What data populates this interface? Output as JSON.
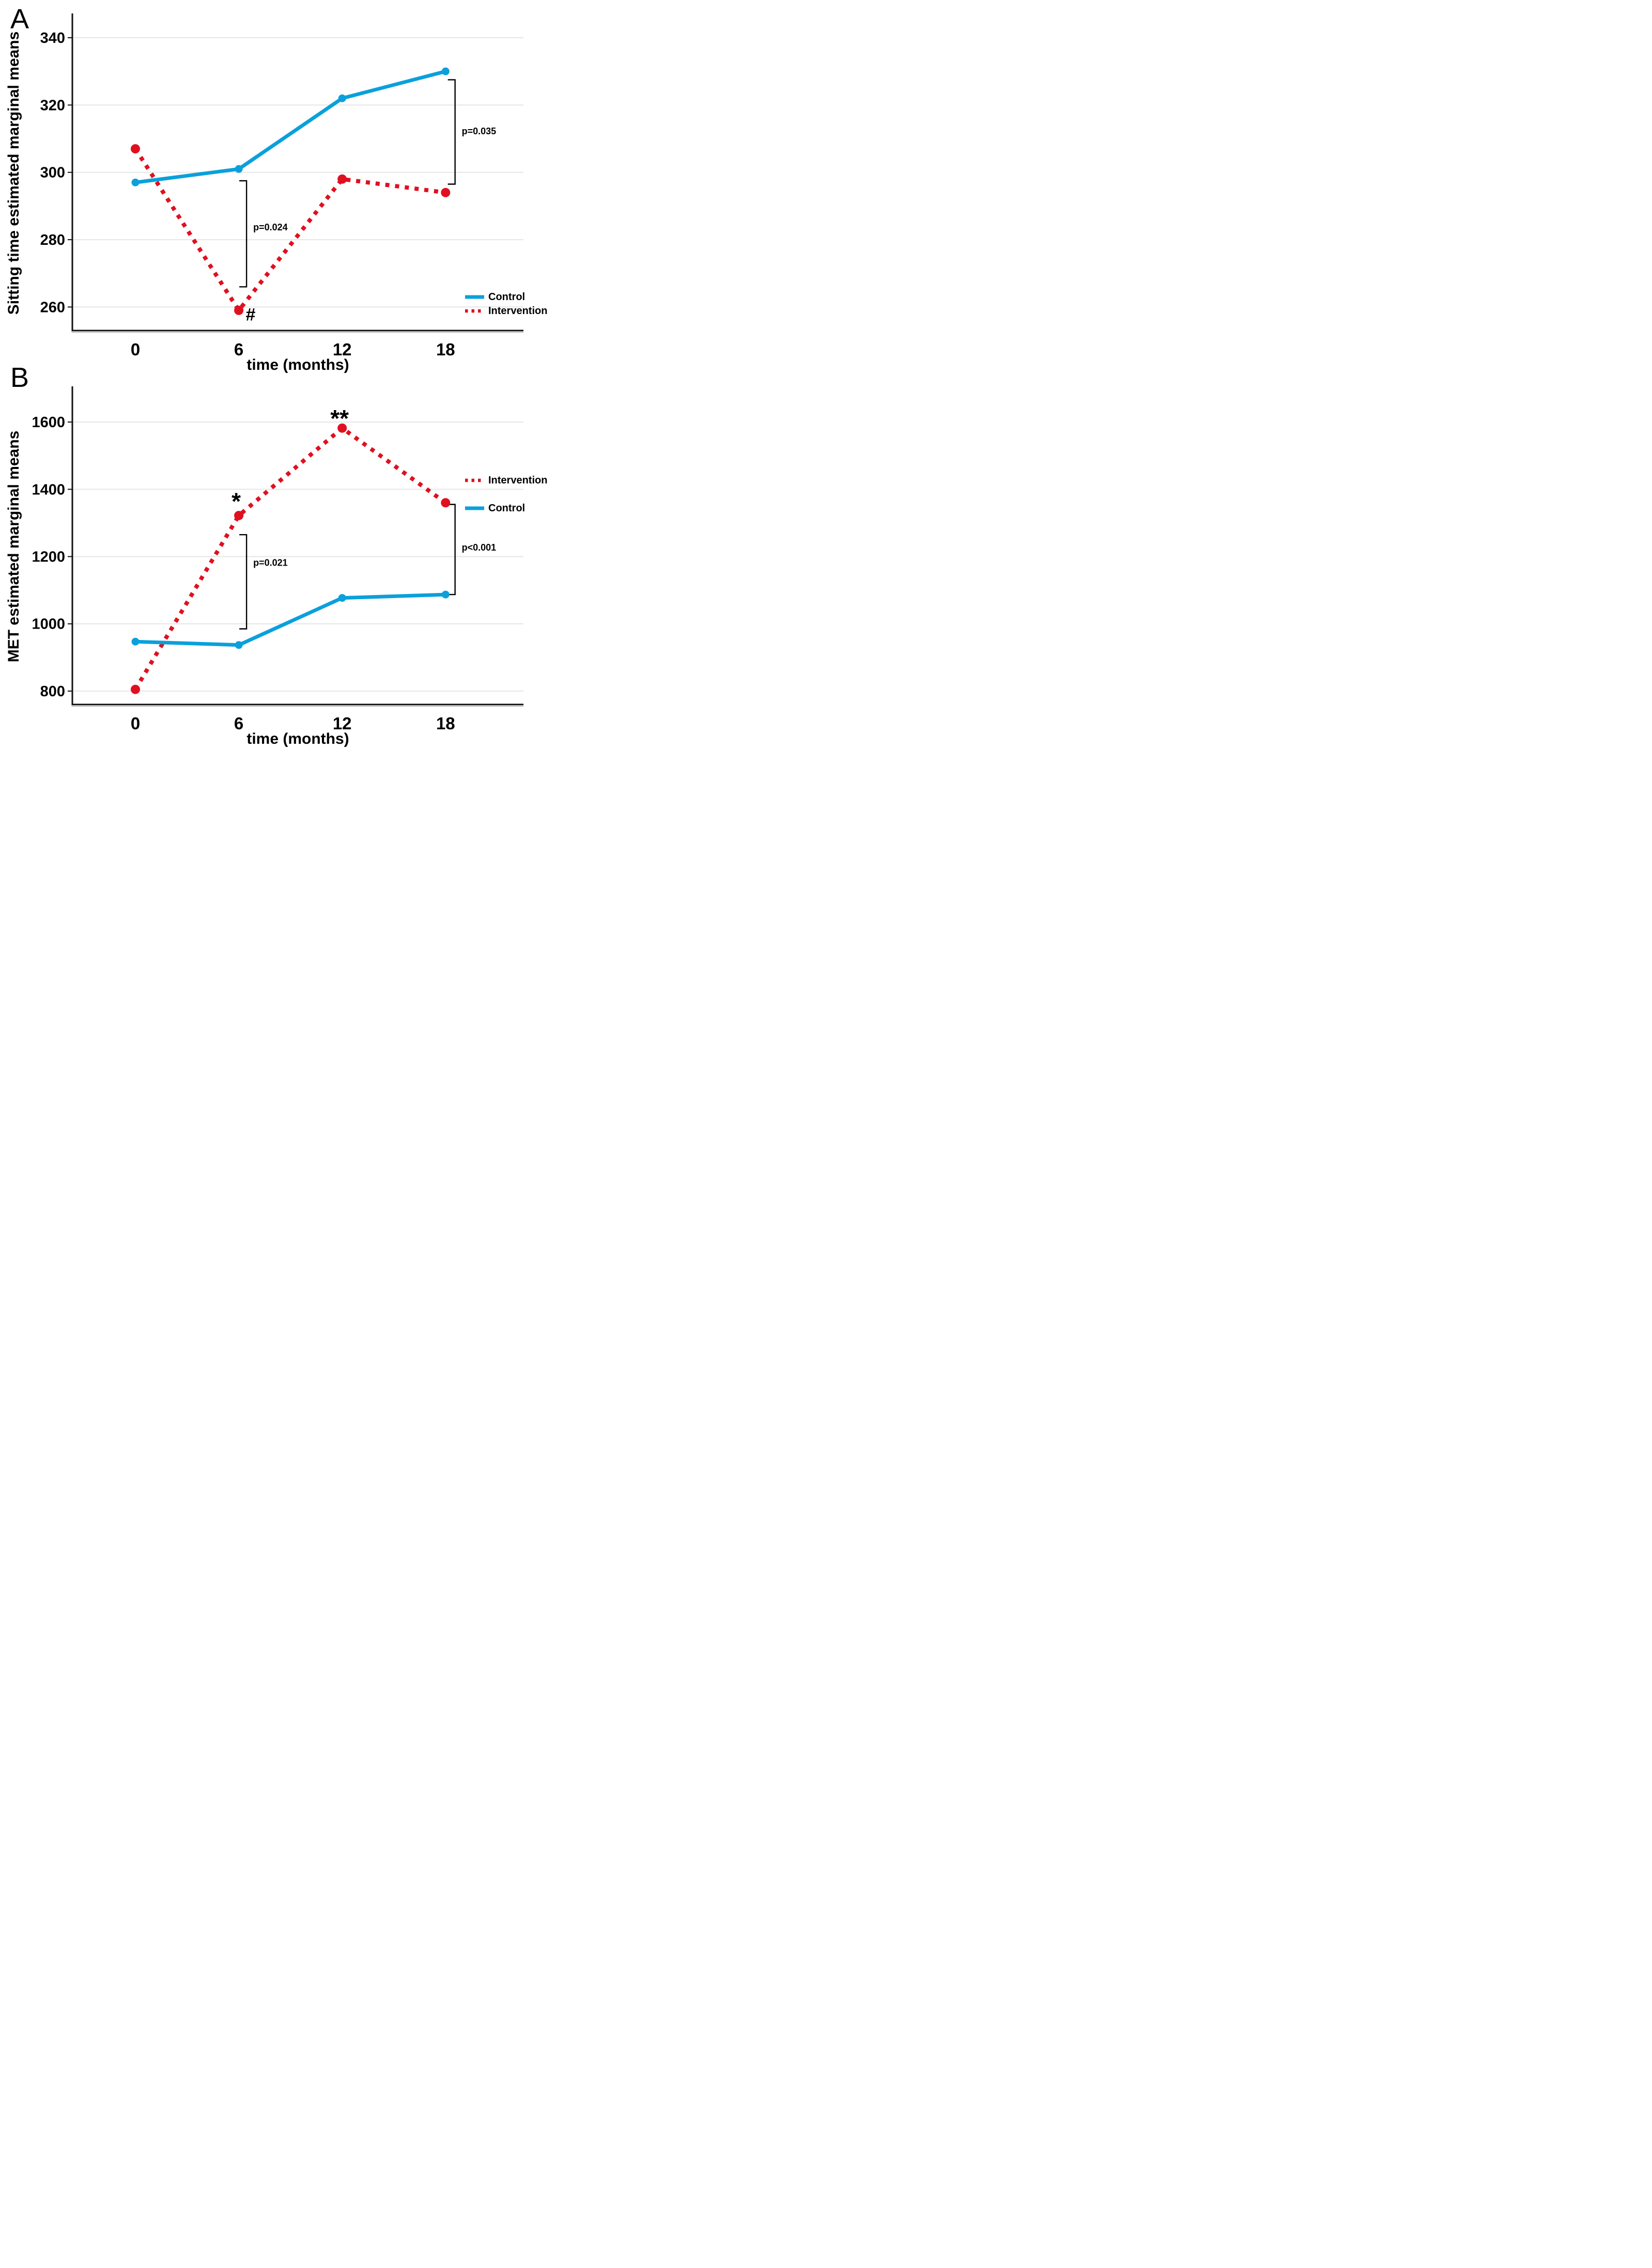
{
  "figure": {
    "background": "#ffffff",
    "accent_blue": "#0aa0dc",
    "accent_red": "#e01020",
    "grid_color": "#e8e8e8",
    "axis_color": "#111111"
  },
  "chart_data": [
    {
      "type": "line",
      "panel_label": "A",
      "ylabel": "Sitting time estimated marginal means",
      "xlabel": "time (months)",
      "x": [
        0,
        6,
        12,
        18
      ],
      "xtick_labels": [
        "0",
        "6",
        "12",
        "18"
      ],
      "yticks": [
        260,
        280,
        300,
        320,
        340
      ],
      "ytick_labels": [
        "260",
        "280",
        "300",
        "320",
        "340"
      ],
      "ylim": [
        253,
        346.6
      ],
      "grid": true,
      "legend": {
        "position": "bottom-right",
        "entries": [
          "Control",
          "Intervention"
        ]
      },
      "series": [
        {
          "name": "Control",
          "color": "#0aa0dc",
          "style": "solid",
          "values": [
            297,
            301,
            322,
            330
          ]
        },
        {
          "name": "Intervention",
          "color": "#e01020",
          "style": "dotted",
          "values": [
            307,
            259,
            298,
            294
          ]
        }
      ],
      "annotations": {
        "markers": [
          {
            "text": "#",
            "x": 6.4,
            "y": 256,
            "anchor": "start"
          }
        ],
        "brackets": [
          {
            "x": 6.45,
            "y_top": 297.5,
            "y_bottom": 266,
            "label": "p=0.024",
            "label_y": 283.5
          },
          {
            "x": 18.55,
            "y_top": 327.5,
            "y_bottom": 296.5,
            "label": "p=0.035",
            "label_y": 312
          }
        ]
      }
    },
    {
      "type": "line",
      "panel_label": "B",
      "ylabel": "MET estimated marginal means",
      "xlabel": "time (months)",
      "x": [
        0,
        6,
        12,
        18
      ],
      "xtick_labels": [
        "0",
        "6",
        "12",
        "18"
      ],
      "yticks": [
        800,
        1000,
        1200,
        1400,
        1600
      ],
      "ytick_labels": [
        "800",
        "1000",
        "1200",
        "1400",
        "1600"
      ],
      "ylim": [
        760,
        1700
      ],
      "grid": true,
      "legend": {
        "position": "top-right",
        "entries": [
          "Intervention",
          "Control"
        ]
      },
      "series": [
        {
          "name": "Intervention",
          "color": "#e01020",
          "style": "dotted",
          "values": [
            805,
            1322,
            1582,
            1360
          ]
        },
        {
          "name": "Control",
          "color": "#0aa0dc",
          "style": "solid",
          "values": [
            947,
            937,
            1077,
            1087
          ]
        }
      ],
      "annotations": {
        "markers": [
          {
            "text": "*",
            "x": 5.85,
            "y": 1340,
            "anchor": "middle"
          },
          {
            "text": "**",
            "x": 11.85,
            "y": 1586,
            "anchor": "middle"
          }
        ],
        "brackets": [
          {
            "x": 6.45,
            "y_top": 1265,
            "y_bottom": 985,
            "label": "p=0.021",
            "label_y": 1180
          },
          {
            "x": 18.55,
            "y_top": 1355,
            "y_bottom": 1087,
            "label": "p<0.001",
            "label_y": 1225
          }
        ]
      }
    }
  ]
}
